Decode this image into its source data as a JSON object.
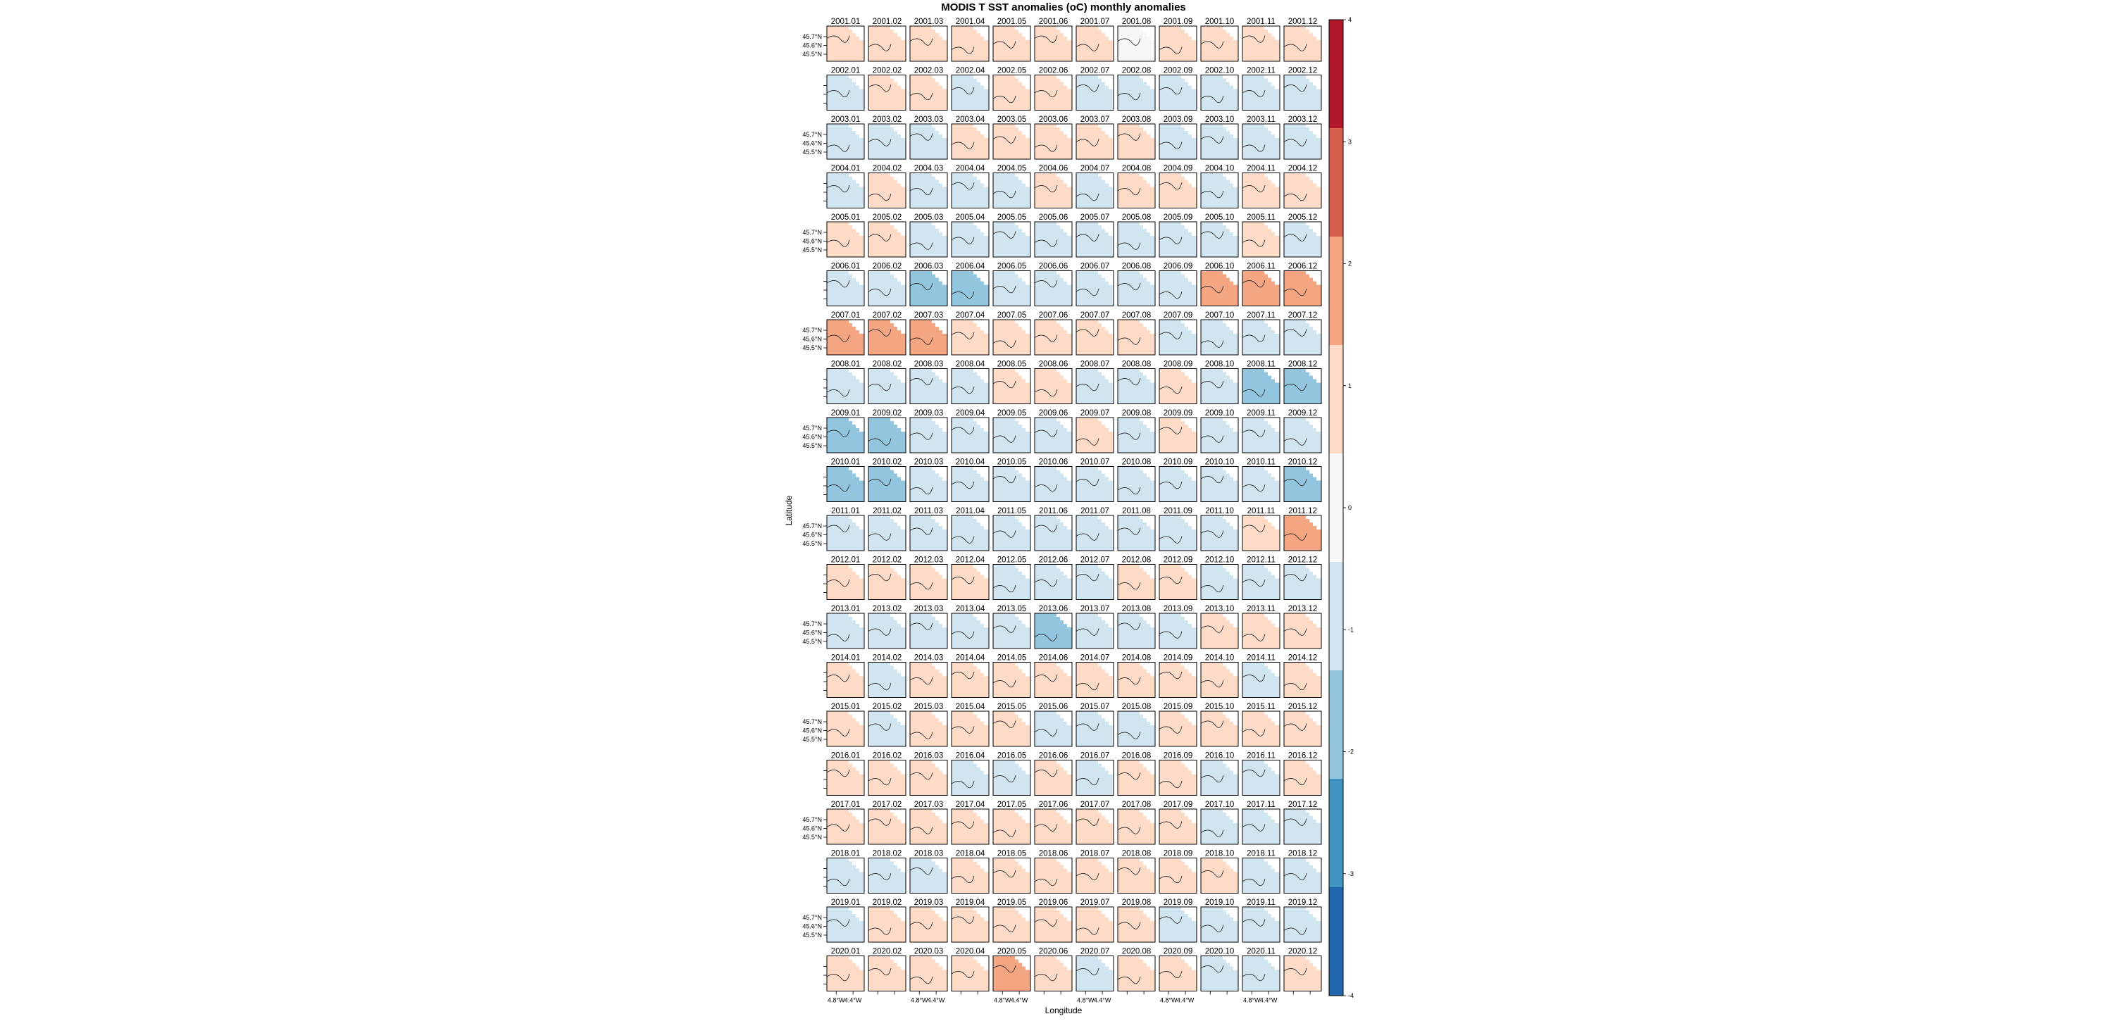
{
  "chart_data": {
    "type": "heatmap",
    "title": "MODIS T SST anomalies (oC) monthly anomalies",
    "xlabel": "Longitude",
    "ylabel": "Latitude",
    "panel_years": [
      "2001",
      "2002",
      "2003",
      "2004",
      "2005",
      "2006",
      "2007",
      "2008",
      "2009",
      "2010",
      "2011",
      "2012",
      "2013",
      "2014",
      "2015",
      "2016",
      "2017",
      "2018",
      "2019",
      "2020"
    ],
    "panel_months": [
      "01",
      "02",
      "03",
      "04",
      "05",
      "06",
      "07",
      "08",
      "09",
      "10",
      "11",
      "12"
    ],
    "y_tick_labels": [
      "45.7°N",
      "45.6°N",
      "45.5°N"
    ],
    "x_tick_labels": [
      "4.8°W",
      "4.4°W"
    ],
    "colorbar": {
      "ticks": [
        4,
        3,
        2,
        1,
        0,
        -1,
        -2,
        -3,
        -4
      ],
      "range": [
        -4,
        4
      ],
      "colors": [
        "#b2182b",
        "#d6604d",
        "#f4a582",
        "#fddbc7",
        "#f7f7f7",
        "#d1e5f0",
        "#92c5de",
        "#4393c3",
        "#2166ac"
      ]
    },
    "anomalies": [
      [
        0.2,
        0.7,
        0.3,
        0.2,
        0.4,
        0.5,
        0.3,
        0.1,
        0.5,
        0.2,
        0.3,
        0.4
      ],
      [
        -0.4,
        0.3,
        0.4,
        -0.2,
        0.2,
        0.3,
        -0.3,
        -0.3,
        -0.4,
        -0.3,
        -0.2,
        -0.3
      ],
      [
        -0.4,
        -0.3,
        -0.4,
        0.2,
        0.4,
        0.3,
        0.3,
        0.4,
        -0.3,
        -0.4,
        -0.4,
        -0.3
      ],
      [
        -0.4,
        0.4,
        -0.3,
        -0.3,
        -0.3,
        0.6,
        -0.5,
        0.8,
        0.6,
        -0.4,
        0.4,
        0.3
      ],
      [
        0.4,
        0.4,
        -0.3,
        -0.4,
        -0.3,
        -0.4,
        -0.3,
        -0.3,
        -0.4,
        -0.3,
        0.4,
        -0.4
      ],
      [
        -0.3,
        -0.4,
        -1.3,
        -1.4,
        -0.4,
        -0.5,
        -0.4,
        -0.3,
        -0.3,
        1.4,
        1.9,
        1.5
      ],
      [
        1.3,
        1.2,
        1.1,
        0.4,
        0.4,
        0.3,
        0.3,
        0.4,
        -0.5,
        -0.4,
        -0.3,
        -0.4
      ],
      [
        -0.3,
        -0.3,
        -0.4,
        -0.3,
        0.3,
        0.5,
        -0.4,
        -0.5,
        0.3,
        -0.3,
        -1.2,
        -1.3
      ],
      [
        -1.3,
        -1.2,
        -0.4,
        -0.4,
        -0.3,
        -0.4,
        0.3,
        -0.4,
        0.2,
        -0.4,
        -0.4,
        -0.3
      ],
      [
        -1.2,
        -1.1,
        -0.5,
        -0.4,
        -0.4,
        -0.4,
        -0.3,
        -0.6,
        -0.4,
        -0.4,
        -0.8,
        -1.1
      ],
      [
        -0.8,
        -0.4,
        -0.3,
        -0.3,
        -0.3,
        -0.4,
        -0.4,
        -0.5,
        -0.4,
        -0.3,
        0.9,
        1.3
      ],
      [
        0.5,
        0.3,
        0.3,
        0.3,
        -0.4,
        -0.4,
        -0.3,
        0.3,
        0.3,
        -0.3,
        -0.3,
        -0.3
      ],
      [
        -0.4,
        -0.3,
        -0.3,
        -0.4,
        -0.4,
        -1.1,
        -0.4,
        -0.5,
        -0.3,
        0.3,
        0.4,
        0.4
      ],
      [
        0.3,
        -0.3,
        0.4,
        0.4,
        0.3,
        0.3,
        0.3,
        0.3,
        0.6,
        0.7,
        -0.3,
        0.3
      ],
      [
        0.3,
        -0.3,
        0.3,
        0.3,
        0.3,
        -0.4,
        -0.4,
        -0.5,
        0.3,
        0.4,
        0.4,
        0.3
      ],
      [
        0.5,
        0.5,
        0.3,
        -0.3,
        -0.3,
        0.3,
        -0.3,
        0.3,
        0.3,
        -0.3,
        -0.3,
        0.3
      ],
      [
        0.3,
        0.3,
        0.4,
        0.3,
        0.3,
        0.3,
        0.4,
        0.3,
        0.3,
        -0.3,
        -0.4,
        -0.3
      ],
      [
        -0.3,
        -0.3,
        -0.3,
        0.3,
        0.3,
        0.3,
        0.6,
        0.7,
        0.3,
        0.3,
        -0.4,
        -0.3
      ],
      [
        -0.3,
        0.3,
        0.3,
        0.3,
        0.3,
        0.3,
        0.4,
        0.5,
        -0.3,
        -0.3,
        -0.4,
        -0.3
      ],
      [
        0.3,
        0.3,
        0.3,
        0.3,
        1.3,
        0.4,
        -0.3,
        0.3,
        0.3,
        -0.3,
        -0.3,
        0.3
      ]
    ]
  }
}
